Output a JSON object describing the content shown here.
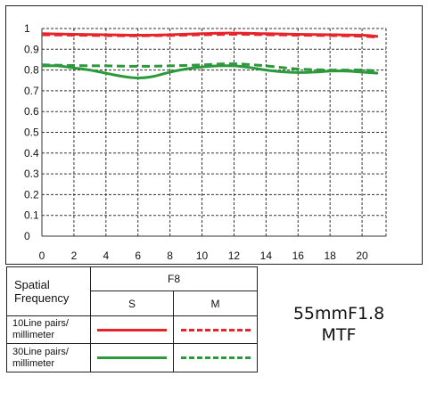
{
  "chart_data": {
    "type": "line",
    "title": "",
    "xlabel": "",
    "ylabel": "",
    "xlim": [
      0,
      21.5
    ],
    "ylim": [
      0,
      1
    ],
    "x_ticks": [
      0,
      2,
      4,
      6,
      8,
      10,
      12,
      14,
      16,
      18,
      20
    ],
    "y_ticks": [
      0,
      0.1,
      0.2,
      0.3,
      0.4,
      0.5,
      0.6,
      0.7,
      0.8,
      0.9,
      1
    ],
    "y_tick_labels": [
      "0",
      "0.1",
      "0.2",
      "0.3",
      "0.4",
      "0.5",
      "0.6",
      "0.7",
      "0.8",
      "0.9",
      "1"
    ],
    "grid": "dashed",
    "series": [
      {
        "name": "10Line pairs/ millimeter S",
        "color": "#e8232a",
        "style": "solid",
        "x": [
          0,
          2,
          4,
          6,
          8,
          10,
          12,
          14,
          16,
          18,
          20,
          21
        ],
        "y": [
          0.975,
          0.972,
          0.97,
          0.968,
          0.97,
          0.975,
          0.978,
          0.975,
          0.972,
          0.97,
          0.968,
          0.962
        ]
      },
      {
        "name": "10Line pairs/ millimeter M",
        "color": "#e8232a",
        "style": "dashed",
        "x": [
          0,
          2,
          4,
          6,
          8,
          10,
          12,
          14,
          16,
          18,
          20,
          21
        ],
        "y": [
          0.97,
          0.968,
          0.966,
          0.965,
          0.967,
          0.97,
          0.972,
          0.97,
          0.968,
          0.966,
          0.963,
          0.958
        ]
      },
      {
        "name": "30Line pairs/ millimeter S",
        "color": "#2a9a3a",
        "style": "solid",
        "x": [
          0,
          1,
          2,
          3,
          4,
          5,
          6,
          7,
          8,
          9,
          10,
          11,
          12,
          13,
          14,
          15,
          16,
          17,
          18,
          19,
          20,
          21
        ],
        "y": [
          0.82,
          0.82,
          0.81,
          0.8,
          0.785,
          0.77,
          0.762,
          0.77,
          0.79,
          0.805,
          0.815,
          0.82,
          0.82,
          0.812,
          0.8,
          0.792,
          0.788,
          0.79,
          0.795,
          0.795,
          0.79,
          0.785
        ]
      },
      {
        "name": "30Line pairs/ millimeter M",
        "color": "#2a9a3a",
        "style": "dashed",
        "x": [
          0,
          2,
          4,
          6,
          8,
          10,
          12,
          14,
          16,
          18,
          20,
          21
        ],
        "y": [
          0.825,
          0.822,
          0.82,
          0.818,
          0.82,
          0.825,
          0.83,
          0.82,
          0.805,
          0.8,
          0.8,
          0.795
        ]
      }
    ]
  },
  "legend": {
    "header_label": "Spatial Frequency",
    "aperture": "F8",
    "col_s": "S",
    "col_m": "M",
    "row_10": "10Line pairs/ millimeter",
    "row_30": "30Line pairs/ millimeter"
  },
  "caption": {
    "lens": "55mmF1.8",
    "type": "MTF"
  }
}
